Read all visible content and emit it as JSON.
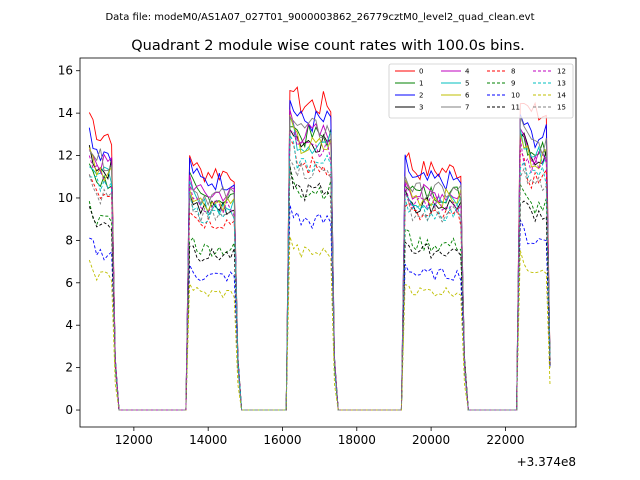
{
  "figure": {
    "suptitle": "Data file: modeM0/AS1A07_027T01_9000003862_26779cztM0_level2_quad_clean.evt"
  },
  "chart_data": {
    "type": "line",
    "title": "Quadrant 2 module wise count rates with 100.0s bins.",
    "xlabel": "",
    "ylabel": "",
    "x_offset_label": "+3.374e8",
    "xlim": [
      10550,
      23900
    ],
    "ylim": [
      -0.8,
      16.6
    ],
    "xticks": [
      12000,
      14000,
      16000,
      18000,
      20000,
      22000
    ],
    "xtick_labels": [
      "12000",
      "14000",
      "16000",
      "18000",
      "20000",
      "22000"
    ],
    "yticks": [
      0,
      2,
      4,
      6,
      8,
      10,
      12,
      14,
      16
    ],
    "ytick_labels": [
      "0",
      "2",
      "4",
      "6",
      "8",
      "10",
      "12",
      "14",
      "16"
    ],
    "legend_position": "upper right",
    "segments": [
      {
        "start": 10800,
        "end": 11500
      },
      {
        "start": 13500,
        "end": 14800
      },
      {
        "start": 16200,
        "end": 17400
      },
      {
        "start": 19300,
        "end": 20900
      },
      {
        "start": 22400,
        "end": 23200
      }
    ],
    "series": [
      {
        "name": "0",
        "color": "#ff0000",
        "dashed": false,
        "levels": [
          13.0,
          11.2,
          14.4,
          11.3,
          13.9
        ]
      },
      {
        "name": "1",
        "color": "#008000",
        "dashed": false,
        "levels": [
          10.8,
          10.0,
          12.9,
          10.2,
          12.3
        ]
      },
      {
        "name": "2",
        "color": "#0000ff",
        "dashed": false,
        "levels": [
          12.2,
          10.8,
          13.6,
          10.8,
          12.9
        ]
      },
      {
        "name": "3",
        "color": "#000000",
        "dashed": false,
        "levels": [
          11.4,
          9.5,
          12.7,
          9.7,
          12.0
        ]
      },
      {
        "name": "4",
        "color": "#bf00bf",
        "dashed": false,
        "levels": [
          11.6,
          10.2,
          13.0,
          10.2,
          12.2
        ]
      },
      {
        "name": "5",
        "color": "#00bfbf",
        "dashed": false,
        "levels": [
          11.0,
          9.6,
          12.6,
          9.8,
          12.0
        ]
      },
      {
        "name": "6",
        "color": "#bfbf00",
        "dashed": false,
        "levels": [
          11.2,
          9.8,
          12.4,
          10.0,
          11.9
        ]
      },
      {
        "name": "7",
        "color": "#808080",
        "dashed": false,
        "levels": [
          11.8,
          10.1,
          13.2,
          10.3,
          12.5
        ]
      },
      {
        "name": "8",
        "color": "#ff0000",
        "dashed": true,
        "levels": [
          10.3,
          8.9,
          11.5,
          9.1,
          10.9
        ]
      },
      {
        "name": "9",
        "color": "#008000",
        "dashed": true,
        "levels": [
          8.9,
          7.6,
          10.4,
          7.8,
          9.6
        ]
      },
      {
        "name": "10",
        "color": "#0000ff",
        "dashed": true,
        "levels": [
          7.4,
          6.3,
          8.9,
          6.4,
          8.0
        ]
      },
      {
        "name": "11",
        "color": "#000000",
        "dashed": true,
        "levels": [
          8.7,
          7.3,
          10.3,
          7.5,
          9.3
        ]
      },
      {
        "name": "12",
        "color": "#bf00bf",
        "dashed": true,
        "levels": [
          10.9,
          9.6,
          12.2,
          9.8,
          11.5
        ]
      },
      {
        "name": "13",
        "color": "#00bfbf",
        "dashed": true,
        "levels": [
          10.4,
          9.2,
          11.6,
          9.3,
          11.0
        ]
      },
      {
        "name": "14",
        "color": "#bfbf00",
        "dashed": true,
        "levels": [
          6.3,
          5.5,
          7.4,
          5.6,
          6.7
        ]
      },
      {
        "name": "15",
        "color": "#808080",
        "dashed": true,
        "levels": [
          10.0,
          9.1,
          11.3,
          9.2,
          10.6
        ]
      }
    ]
  }
}
